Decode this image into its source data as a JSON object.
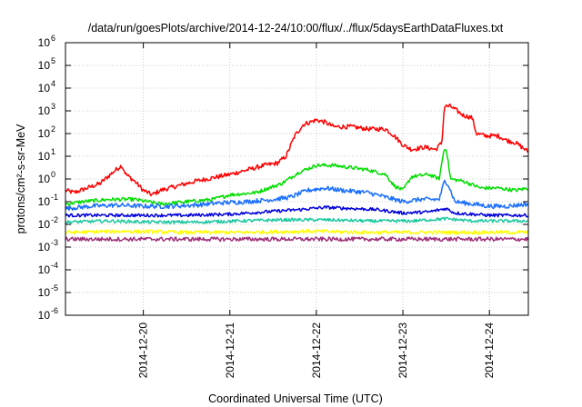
{
  "chart_data": {
    "type": "line",
    "title": "/data/run/goesPlots/archive/2014-12-24/10:00/flux/../flux/5daysEarthDataFluxes.txt",
    "xlabel": "Coordinated Universal Time (UTC)",
    "ylabel": "protons/cm²-s-sr-MeV",
    "y_scale": "log",
    "ylim_exp": [
      -6,
      6
    ],
    "xlim_days": [
      19.1,
      24.45
    ],
    "x_ticks": [
      {
        "label": "2014-12-20",
        "day": 20
      },
      {
        "label": "2014-12-21",
        "day": 21
      },
      {
        "label": "2014-12-22",
        "day": 22
      },
      {
        "label": "2014-12-23",
        "day": 23
      },
      {
        "label": "2014-12-24",
        "day": 24
      }
    ],
    "y_ticks": [
      {
        "base": "10",
        "exp": "-6",
        "value": -6
      },
      {
        "base": "10",
        "exp": "-5",
        "value": -5
      },
      {
        "base": "10",
        "exp": "-4",
        "value": -4
      },
      {
        "base": "10",
        "exp": "-3",
        "value": -3
      },
      {
        "base": "10",
        "exp": "-2",
        "value": -2
      },
      {
        "base": "10",
        "exp": "-1",
        "value": -1
      },
      {
        "base": "10",
        "exp": "0",
        "value": 0
      },
      {
        "base": "10",
        "exp": "1",
        "value": 1
      },
      {
        "base": "10",
        "exp": "2",
        "value": 2
      },
      {
        "base": "10",
        "exp": "3",
        "value": 3
      },
      {
        "base": "10",
        "exp": "4",
        "value": 4
      },
      {
        "base": "10",
        "exp": "5",
        "value": 5
      },
      {
        "base": "10",
        "exp": "6",
        "value": 6
      }
    ],
    "grid": true,
    "series": [
      {
        "color": "#ff0000",
        "noise": 0.1,
        "points": [
          [
            19.1,
            -0.5
          ],
          [
            19.2,
            -0.6
          ],
          [
            19.35,
            -0.4
          ],
          [
            19.5,
            -0.2
          ],
          [
            19.65,
            0.3
          ],
          [
            19.75,
            0.6
          ],
          [
            19.8,
            0.2
          ],
          [
            19.9,
            -0.1
          ],
          [
            20.0,
            -0.5
          ],
          [
            20.1,
            -0.7
          ],
          [
            20.2,
            -0.5
          ],
          [
            20.4,
            -0.3
          ],
          [
            20.6,
            -0.1
          ],
          [
            20.8,
            0.05
          ],
          [
            21.0,
            0.2
          ],
          [
            21.2,
            0.4
          ],
          [
            21.4,
            0.6
          ],
          [
            21.55,
            0.7
          ],
          [
            21.65,
            1.0
          ],
          [
            21.75,
            1.9
          ],
          [
            21.85,
            2.4
          ],
          [
            22.0,
            2.6
          ],
          [
            22.1,
            2.5
          ],
          [
            22.2,
            2.3
          ],
          [
            22.4,
            2.3
          ],
          [
            22.6,
            2.2
          ],
          [
            22.8,
            2.2
          ],
          [
            22.9,
            1.9
          ],
          [
            23.0,
            1.5
          ],
          [
            23.1,
            1.3
          ],
          [
            23.25,
            1.4
          ],
          [
            23.38,
            1.3
          ],
          [
            23.45,
            1.6
          ],
          [
            23.48,
            3.2
          ],
          [
            23.55,
            3.2
          ],
          [
            23.7,
            2.8
          ],
          [
            23.8,
            2.7
          ],
          [
            23.85,
            2.0
          ],
          [
            23.95,
            1.9
          ],
          [
            24.1,
            1.9
          ],
          [
            24.2,
            1.7
          ],
          [
            24.3,
            1.6
          ],
          [
            24.45,
            1.2
          ]
        ]
      },
      {
        "color": "#00dd00",
        "noise": 0.08,
        "points": [
          [
            19.1,
            -1.1
          ],
          [
            19.3,
            -1.0
          ],
          [
            19.6,
            -0.9
          ],
          [
            19.9,
            -0.9
          ],
          [
            20.2,
            -1.1
          ],
          [
            20.5,
            -1.0
          ],
          [
            20.8,
            -0.9
          ],
          [
            21.0,
            -0.7
          ],
          [
            21.3,
            -0.6
          ],
          [
            21.6,
            -0.2
          ],
          [
            21.8,
            0.3
          ],
          [
            22.0,
            0.6
          ],
          [
            22.2,
            0.6
          ],
          [
            22.4,
            0.5
          ],
          [
            22.6,
            0.4
          ],
          [
            22.8,
            0.2
          ],
          [
            22.9,
            -0.3
          ],
          [
            23.0,
            -0.5
          ],
          [
            23.1,
            0.1
          ],
          [
            23.3,
            0.2
          ],
          [
            23.42,
            0.0
          ],
          [
            23.47,
            1.2
          ],
          [
            23.5,
            1.4
          ],
          [
            23.55,
            0.0
          ],
          [
            23.7,
            -0.1
          ],
          [
            23.9,
            -0.4
          ],
          [
            24.1,
            -0.4
          ],
          [
            24.3,
            -0.5
          ],
          [
            24.45,
            -0.4
          ]
        ]
      },
      {
        "color": "#1a6fff",
        "noise": 0.1,
        "points": [
          [
            19.1,
            -1.3
          ],
          [
            19.4,
            -1.2
          ],
          [
            19.7,
            -1.15
          ],
          [
            20.0,
            -1.2
          ],
          [
            20.3,
            -1.2
          ],
          [
            20.6,
            -1.15
          ],
          [
            20.9,
            -1.05
          ],
          [
            21.2,
            -1.0
          ],
          [
            21.5,
            -0.9
          ],
          [
            21.7,
            -0.8
          ],
          [
            21.9,
            -0.5
          ],
          [
            22.1,
            -0.4
          ],
          [
            22.3,
            -0.5
          ],
          [
            22.6,
            -0.6
          ],
          [
            22.9,
            -0.9
          ],
          [
            23.0,
            -1.0
          ],
          [
            23.2,
            -0.9
          ],
          [
            23.42,
            -0.9
          ],
          [
            23.48,
            -0.1
          ],
          [
            23.52,
            -0.2
          ],
          [
            23.6,
            -1.0
          ],
          [
            23.8,
            -1.1
          ],
          [
            24.0,
            -1.2
          ],
          [
            24.2,
            -1.2
          ],
          [
            24.45,
            -1.1
          ]
        ]
      },
      {
        "color": "#0000dd",
        "noise": 0.07,
        "points": [
          [
            19.1,
            -1.6
          ],
          [
            19.5,
            -1.6
          ],
          [
            20.0,
            -1.6
          ],
          [
            20.5,
            -1.6
          ],
          [
            21.0,
            -1.55
          ],
          [
            21.4,
            -1.45
          ],
          [
            21.8,
            -1.35
          ],
          [
            22.1,
            -1.25
          ],
          [
            22.4,
            -1.3
          ],
          [
            22.7,
            -1.35
          ],
          [
            23.0,
            -1.5
          ],
          [
            23.3,
            -1.45
          ],
          [
            23.5,
            -1.3
          ],
          [
            23.6,
            -1.5
          ],
          [
            24.0,
            -1.6
          ],
          [
            24.45,
            -1.6
          ]
        ]
      },
      {
        "color": "#1cc8a0",
        "noise": 0.07,
        "points": [
          [
            19.1,
            -1.9
          ],
          [
            19.6,
            -1.85
          ],
          [
            20.1,
            -1.9
          ],
          [
            20.6,
            -1.9
          ],
          [
            21.1,
            -1.85
          ],
          [
            21.6,
            -1.8
          ],
          [
            22.1,
            -1.8
          ],
          [
            22.6,
            -1.85
          ],
          [
            23.1,
            -1.85
          ],
          [
            23.5,
            -1.75
          ],
          [
            23.8,
            -1.85
          ],
          [
            24.45,
            -1.85
          ]
        ]
      },
      {
        "color": "#ffff00",
        "noise": 0.08,
        "points": [
          [
            19.1,
            -2.35
          ],
          [
            19.8,
            -2.3
          ],
          [
            20.5,
            -2.35
          ],
          [
            21.2,
            -2.35
          ],
          [
            21.9,
            -2.3
          ],
          [
            22.6,
            -2.35
          ],
          [
            23.3,
            -2.35
          ],
          [
            24.0,
            -2.35
          ],
          [
            24.45,
            -2.35
          ]
        ]
      },
      {
        "color": "#a0307a",
        "noise": 0.09,
        "points": [
          [
            19.1,
            -2.65
          ],
          [
            19.8,
            -2.65
          ],
          [
            20.5,
            -2.65
          ],
          [
            21.2,
            -2.65
          ],
          [
            21.9,
            -2.65
          ],
          [
            22.6,
            -2.65
          ],
          [
            23.3,
            -2.65
          ],
          [
            24.0,
            -2.65
          ],
          [
            24.45,
            -2.65
          ]
        ]
      }
    ]
  }
}
